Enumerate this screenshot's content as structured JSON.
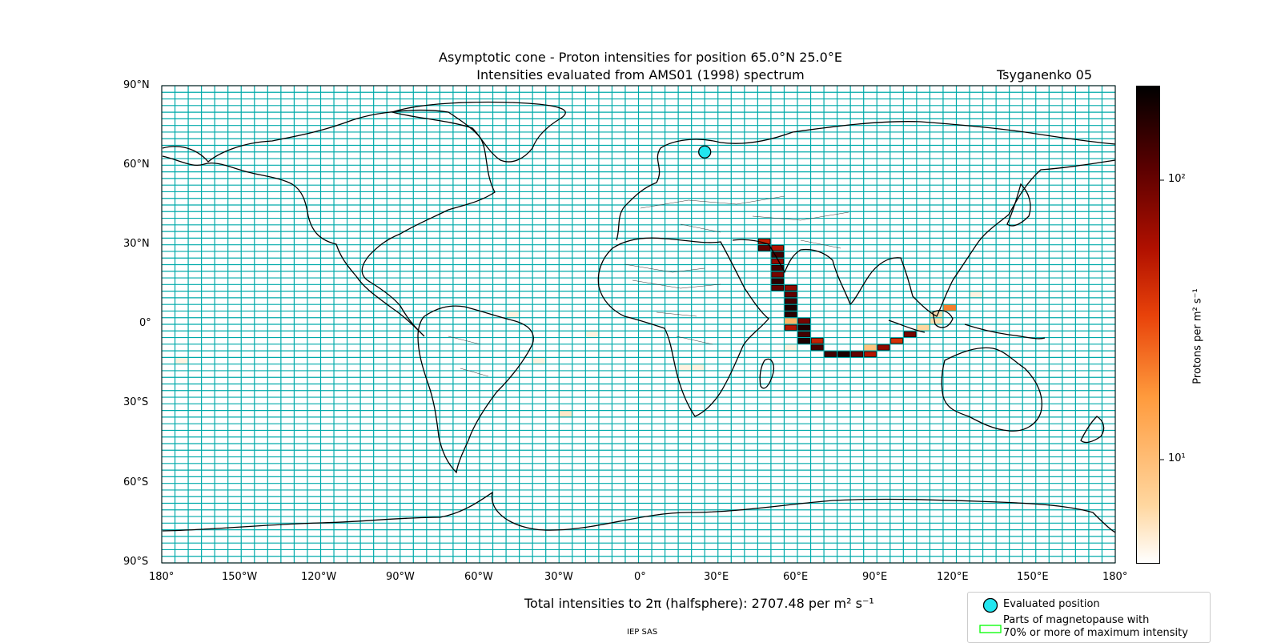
{
  "title": {
    "line1": "Asymptotic cone - Proton intensities for position 65.0°N 25.0°E",
    "line2": "Intensities evaluated from AMS01 (1998) spectrum",
    "model": "Tsyganenko 05"
  },
  "axes": {
    "lat_ticks": [
      "90°N",
      "60°N",
      "30°N",
      "0°",
      "30°S",
      "60°S",
      "90°S"
    ],
    "lon_ticks": [
      "180°",
      "150°W",
      "120°W",
      "90°W",
      "60°W",
      "30°W",
      "0°",
      "30°E",
      "60°E",
      "90°E",
      "120°E",
      "150°E",
      "180°"
    ]
  },
  "colorbar": {
    "label": "Protons per m² s⁻¹",
    "tick_high": "10²",
    "tick_low": "10¹",
    "scale": "log",
    "colors": [
      "#ffffff",
      "#ffd7a0",
      "#ff9a3c",
      "#e8420a",
      "#b01000",
      "#5a0000",
      "#000000"
    ]
  },
  "footer": {
    "total_text": "Total intensities to 2π (halfsphere): 2707.48 per m² s⁻¹",
    "credit": "IEP SAS"
  },
  "legend": {
    "item1": "Evaluated position",
    "item2_line1": "Parts of magnetopause with",
    "item2_line2": "70% or more of maximum intensity"
  },
  "colors": {
    "grid": "#00aaaa",
    "evaluated_position": "#22e6f0",
    "magnetopause": "#00ff00"
  },
  "map_data": {
    "evaluated_position": {
      "lat": 65.0,
      "lon": 25.0
    },
    "grid_step_lon": 5,
    "grid_step_lat": 2.5,
    "cells": [
      {
        "lon": 47.5,
        "lat": 31.25,
        "v": 50
      },
      {
        "lon": 47.5,
        "lat": 28.75,
        "v": 120
      },
      {
        "lon": 52.5,
        "lat": 28.75,
        "v": 60
      },
      {
        "lon": 52.5,
        "lat": 26.25,
        "v": 150
      },
      {
        "lon": 52.5,
        "lat": 23.75,
        "v": 80
      },
      {
        "lon": 52.5,
        "lat": 21.25,
        "v": 150
      },
      {
        "lon": 52.5,
        "lat": 18.75,
        "v": 100
      },
      {
        "lon": 52.5,
        "lat": 16.25,
        "v": 180
      },
      {
        "lon": 52.5,
        "lat": 13.75,
        "v": 120
      },
      {
        "lon": 57.5,
        "lat": 13.75,
        "v": 80
      },
      {
        "lon": 57.5,
        "lat": 11.25,
        "v": 120
      },
      {
        "lon": 57.5,
        "lat": 8.75,
        "v": 150
      },
      {
        "lon": 57.5,
        "lat": 6.25,
        "v": 200
      },
      {
        "lon": 57.5,
        "lat": 3.75,
        "v": 180
      },
      {
        "lon": 57.5,
        "lat": 1.25,
        "v": 12
      },
      {
        "lon": 57.5,
        "lat": -1.25,
        "v": 60
      },
      {
        "lon": 62.5,
        "lat": 1.25,
        "v": 100
      },
      {
        "lon": 62.5,
        "lat": -1.25,
        "v": 200
      },
      {
        "lon": 62.5,
        "lat": -3.75,
        "v": 150
      },
      {
        "lon": 62.5,
        "lat": -6.25,
        "v": 200
      },
      {
        "lon": 67.5,
        "lat": -6.25,
        "v": 50
      },
      {
        "lon": 67.5,
        "lat": -8.75,
        "v": 150
      },
      {
        "lon": 72.5,
        "lat": -11.25,
        "v": 150
      },
      {
        "lon": 77.5,
        "lat": -11.25,
        "v": 200
      },
      {
        "lon": 82.5,
        "lat": -11.25,
        "v": 120
      },
      {
        "lon": 87.5,
        "lat": -11.25,
        "v": 60
      },
      {
        "lon": 87.5,
        "lat": -8.75,
        "v": 10
      },
      {
        "lon": 92.5,
        "lat": -8.75,
        "v": 80
      },
      {
        "lon": 97.5,
        "lat": -6.25,
        "v": 40
      },
      {
        "lon": 102.5,
        "lat": -3.75,
        "v": 100
      },
      {
        "lon": 107.5,
        "lat": -1.25,
        "v": 8
      },
      {
        "lon": 112.5,
        "lat": 1.25,
        "v": 7
      },
      {
        "lon": 112.5,
        "lat": 3.75,
        "v": 7
      },
      {
        "lon": 117.5,
        "lat": 6.25,
        "v": 20
      },
      {
        "lon": 127.5,
        "lat": 11.25,
        "v": 5
      },
      {
        "lon": 57.5,
        "lat": -8.75,
        "v": 5
      },
      {
        "lon": -47.5,
        "lat": 3.75,
        "v": 5
      },
      {
        "lon": -17.5,
        "lat": -3.75,
        "v": 5
      },
      {
        "lon": -37.5,
        "lat": -13.75,
        "v": 5
      },
      {
        "lon": -172.5,
        "lat": -13.75,
        "v": 5
      },
      {
        "lon": -27.5,
        "lat": -33.75,
        "v": 6
      },
      {
        "lon": 22.5,
        "lat": -16.25,
        "v": 5
      },
      {
        "lon": 17.5,
        "lat": -16.25,
        "v": 5
      }
    ]
  }
}
